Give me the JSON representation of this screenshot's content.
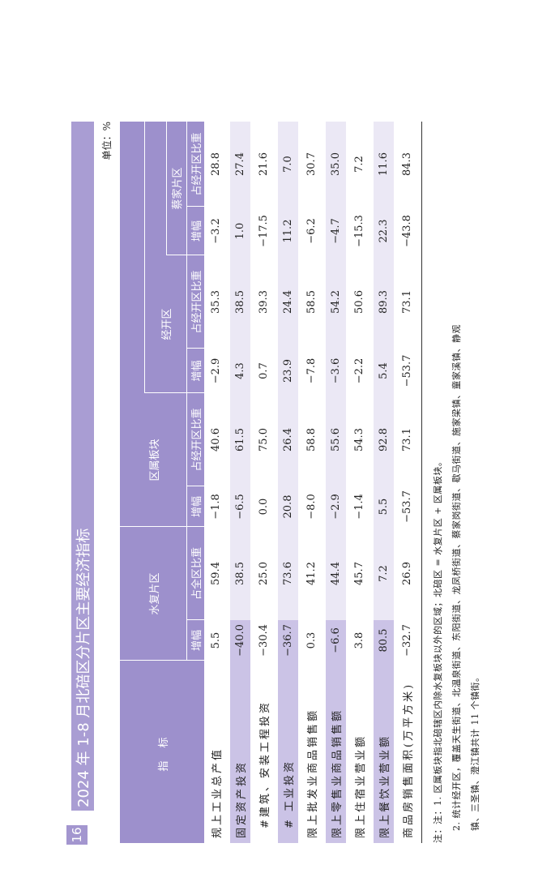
{
  "page_number": "16",
  "title": "2024 年 1-8 月北碚区分片区主要经济指标",
  "unit": "单位：%",
  "header": {
    "indicator": "指  标",
    "shuifu": "水复片区",
    "qushu": "区属板块",
    "jingkai": "经开区",
    "caijia": "蔡家片区",
    "columns": [
      "增幅",
      "占全区比重",
      "增幅",
      "占经开区比重",
      "增幅",
      "占经开区比重",
      "增幅",
      "占经开区比重"
    ]
  },
  "table": {
    "rows": [
      [
        "规上工业总产值",
        "5.5",
        "59.4",
        "−1.8",
        "40.6",
        "−2.9",
        "35.3",
        "−3.2",
        "28.8"
      ],
      [
        "固定资产投资",
        "−40.0",
        "38.5",
        "−6.5",
        "61.5",
        "4.3",
        "38.5",
        "1.0",
        "27.4"
      ],
      [
        "#建筑、安装工程投资",
        "−30.4",
        "25.0",
        "0.0",
        "75.0",
        "0.7",
        "39.3",
        "−17.5",
        "21.6"
      ],
      [
        "# 工业投资",
        "−36.7",
        "73.6",
        "20.8",
        "26.4",
        "23.9",
        "24.4",
        "11.2",
        "7.0"
      ],
      [
        "限上批发业商品销售额",
        "0.3",
        "41.2",
        "−8.0",
        "58.8",
        "−7.8",
        "58.5",
        "−6.2",
        "30.7"
      ],
      [
        "限上零售业商品销售额",
        "−6.6",
        "44.4",
        "−2.9",
        "55.6",
        "−3.6",
        "54.2",
        "−4.7",
        "35.0"
      ],
      [
        "限上住宿业营业额",
        "3.8",
        "45.7",
        "−1.4",
        "54.3",
        "−2.2",
        "50.6",
        "−15.3",
        "7.2"
      ],
      [
        "限上餐饮业营业额",
        "80.5",
        "7.2",
        "5.5",
        "92.8",
        "5.4",
        "89.3",
        "22.3",
        "11.6"
      ],
      [
        "商品房销售面积(万平方米)",
        "−32.7",
        "26.9",
        "−53.7",
        "73.1",
        "−53.7",
        "73.1",
        "−43.8",
        "84.3"
      ]
    ]
  },
  "notes": [
    "注：注：1. 区属板块指北碚辖区内除水复板块以外的区域；北碚区 = 水复片区 + 区属板块。",
    "2. 统计经开区，覆盖天生街道、北温泉街道、东阳街道、龙凤桥街道、蔡家岗街道、歇马街道、施家梁镇、童家溪镇、静观",
    "镇、三圣镇、澄江镇共计 11 个镇街。"
  ]
}
